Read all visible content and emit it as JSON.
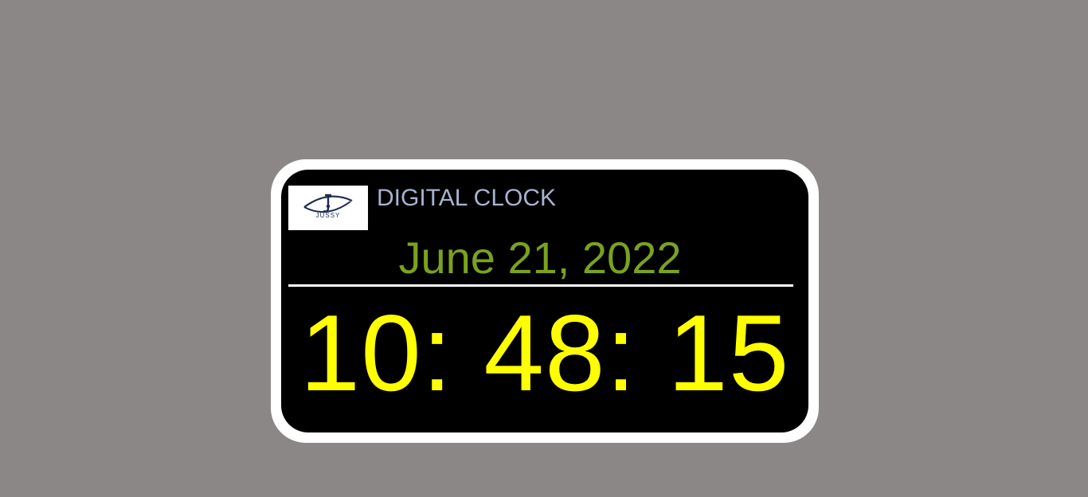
{
  "app": {
    "title": "DIGITAL CLOCK",
    "logo_text": "JUSSY",
    "logo_icon": "jussy-eye-logo-icon"
  },
  "clock": {
    "date": "June 21, 2022",
    "time": "10: 48: 15"
  },
  "colors": {
    "page_background": "#8b8786",
    "frame": "#ffffff",
    "panel": "#000000",
    "title": "#a7b3cf",
    "date": "#7aa21f",
    "time": "#ffff00",
    "divider": "#ffffff"
  }
}
